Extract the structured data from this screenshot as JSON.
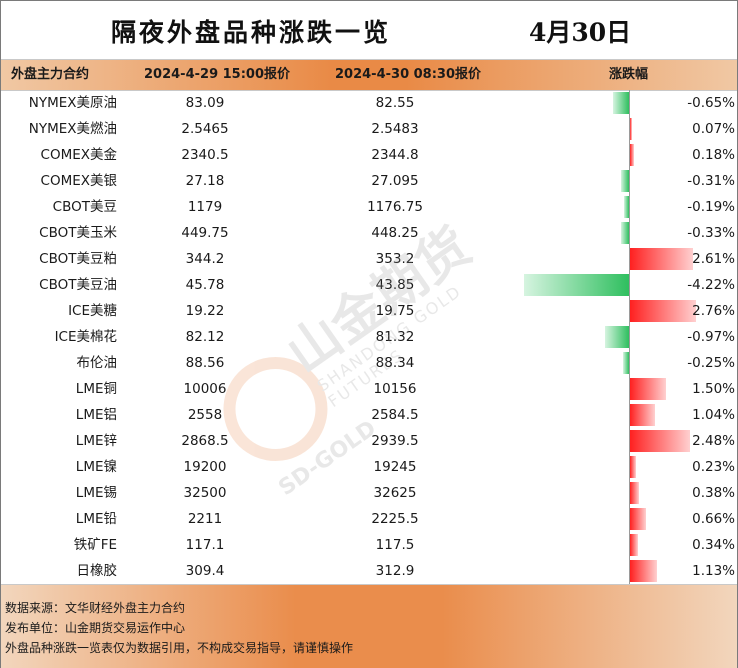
{
  "title": "隔夜外盘品种涨跌一览",
  "date": "4月30日",
  "headers": {
    "name": "外盘主力合约",
    "price1": "2024-4-29 15:00报价",
    "price2": "2024-4-30 08:30报价",
    "change": "涨跌幅"
  },
  "rows": [
    {
      "name": "NYMEX美原油",
      "p1": "83.09",
      "p2": "82.55",
      "pct": "-0.65%",
      "value": -0.65
    },
    {
      "name": "NYMEX美燃油",
      "p1": "2.5465",
      "p2": "2.5483",
      "pct": "0.07%",
      "value": 0.07
    },
    {
      "name": "COMEX美金",
      "p1": "2340.5",
      "p2": "2344.8",
      "pct": "0.18%",
      "value": 0.18
    },
    {
      "name": "COMEX美银",
      "p1": "27.18",
      "p2": "27.095",
      "pct": "-0.31%",
      "value": -0.31
    },
    {
      "name": "CBOT美豆",
      "p1": "1179",
      "p2": "1176.75",
      "pct": "-0.19%",
      "value": -0.19
    },
    {
      "name": "CBOT美玉米",
      "p1": "449.75",
      "p2": "448.25",
      "pct": "-0.33%",
      "value": -0.33
    },
    {
      "name": "CBOT美豆粕",
      "p1": "344.2",
      "p2": "353.2",
      "pct": "2.61%",
      "value": 2.61
    },
    {
      "name": "CBOT美豆油",
      "p1": "45.78",
      "p2": "43.85",
      "pct": "-4.22%",
      "value": -4.22
    },
    {
      "name": "ICE美糖",
      "p1": "19.22",
      "p2": "19.75",
      "pct": "2.76%",
      "value": 2.76
    },
    {
      "name": "ICE美棉花",
      "p1": "82.12",
      "p2": "81.32",
      "pct": "-0.97%",
      "value": -0.97
    },
    {
      "name": "布伦油",
      "p1": "88.56",
      "p2": "88.34",
      "pct": "-0.25%",
      "value": -0.25
    },
    {
      "name": "LME铜",
      "p1": "10006",
      "p2": "10156",
      "pct": "1.50%",
      "value": 1.5
    },
    {
      "name": "LME铝",
      "p1": "2558",
      "p2": "2584.5",
      "pct": "1.04%",
      "value": 1.04
    },
    {
      "name": "LME锌",
      "p1": "2868.5",
      "p2": "2939.5",
      "pct": "2.48%",
      "value": 2.48
    },
    {
      "name": "LME镍",
      "p1": "19200",
      "p2": "19245",
      "pct": "0.23%",
      "value": 0.23
    },
    {
      "name": "LME锡",
      "p1": "32500",
      "p2": "32625",
      "pct": "0.38%",
      "value": 0.38
    },
    {
      "name": "LME铅",
      "p1": "2211",
      "p2": "2225.5",
      "pct": "0.66%",
      "value": 0.66
    },
    {
      "name": "铁矿FE",
      "p1": "117.1",
      "p2": "117.5",
      "pct": "0.34%",
      "value": 0.34
    },
    {
      "name": "日橡胶",
      "p1": "309.4",
      "p2": "312.9",
      "pct": "1.13%",
      "value": 1.13
    }
  ],
  "watermark": {
    "brand": "山金期货",
    "english": "SHANDONG GOLD FUTURES",
    "short": "SD-GOLD"
  },
  "footer": {
    "source": "数据来源：文华财经外盘主力合约",
    "publisher": "发布单位：山金期货交易运作中心",
    "disclaimer": "外盘品种涨跌一览表仅为数据引用，不构成交易指导，请谨慎操作"
  },
  "colors": {
    "up": "#ff2020",
    "down": "#2fbf5f",
    "accent": "#e98a46"
  }
}
